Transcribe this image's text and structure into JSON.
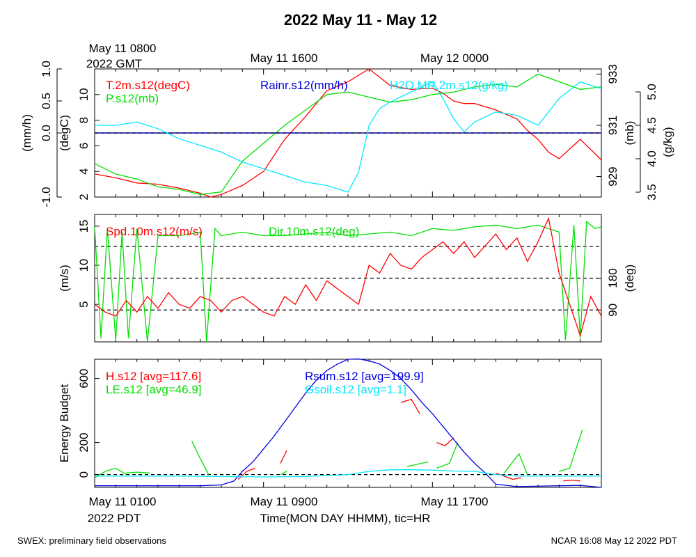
{
  "title": "2022 May 11 - May 12",
  "top_time_labels": [
    "May 11 0800",
    "May 11 1600",
    "May 12 0000"
  ],
  "top_time_sublabel": "2022 GMT",
  "bottom_time_labels": [
    "May 11 0100",
    "May 11 0900",
    "May 11 1700"
  ],
  "bottom_time_sublabel": "2022 PDT",
  "xlabel": "Time(MON DAY HHMM), tic=HR",
  "footer_left": "SWEX: preliminary field observations",
  "footer_right": "NCAR 16:08 May 12 2022 PDT",
  "colors": {
    "red": "#ff0000",
    "green": "#00e000",
    "blue": "#0000e0",
    "cyan": "#00e8ff",
    "black": "#000000"
  },
  "chart_data": [
    {
      "type": "line",
      "panel": "top",
      "x_unit": "hours since May 11 0100 PDT",
      "xlim": [
        0,
        24
      ],
      "axes": {
        "left_outer": {
          "label": "(mm/h)",
          "ticks": [
            "-1.0",
            "0.0",
            "0.5",
            "1.0"
          ],
          "tick_values": [
            -1.0,
            0.0,
            0.5,
            1.0
          ],
          "range": [
            -1.0,
            1.0
          ]
        },
        "left_inner": {
          "label": "(degC)",
          "ticks": [
            "2",
            "4",
            "6",
            "8",
            "10"
          ],
          "tick_values": [
            2,
            4,
            6,
            8,
            10
          ],
          "range": [
            2,
            12
          ]
        },
        "right_inner": {
          "label": "(mb)",
          "ticks": [
            "929",
            "931",
            "933"
          ],
          "tick_values": [
            929,
            931,
            933
          ],
          "range": [
            928.2,
            933.2
          ]
        },
        "right_outer": {
          "label": "(g/kg)",
          "ticks": [
            "3.5",
            "4.0",
            "4.5",
            "5.0"
          ],
          "tick_values": [
            3.5,
            4.0,
            4.5,
            5.0
          ],
          "range": [
            3.5,
            5.0
          ]
        }
      },
      "series": [
        {
          "name": "T.2m.s12(degC)",
          "color": "red",
          "axis": "left_inner",
          "x": [
            0,
            1,
            2,
            3,
            4,
            5,
            5.5,
            6,
            7,
            8,
            9,
            10,
            11,
            12,
            13,
            14,
            15,
            16,
            16.5,
            17,
            17.5,
            18,
            19,
            20,
            20.5,
            21,
            21.5,
            22,
            23,
            24
          ],
          "y": [
            3.8,
            3.5,
            3.1,
            3.0,
            2.7,
            2.3,
            2.0,
            2.2,
            2.9,
            4.0,
            6.5,
            8.3,
            10.3,
            11.0,
            12.0,
            10.7,
            10.4,
            10.5,
            10.1,
            9.5,
            9.3,
            9.3,
            8.8,
            8.1,
            7.2,
            6.5,
            5.5,
            5.0,
            6.5,
            4.9
          ]
        },
        {
          "name": "P.s12(mb)",
          "color": "green",
          "axis": "right_inner",
          "x": [
            0,
            1,
            2,
            3,
            4,
            5,
            6,
            7,
            8,
            9,
            10,
            11,
            12,
            13,
            14,
            15,
            16,
            17,
            18,
            19,
            20,
            21,
            22,
            23,
            24
          ],
          "y": [
            929.5,
            929.1,
            928.9,
            928.6,
            928.5,
            928.3,
            928.4,
            929.6,
            930.3,
            931.0,
            931.6,
            932.2,
            932.3,
            932.1,
            931.9,
            932.0,
            932.2,
            932.3,
            932.5,
            932.6,
            932.5,
            933.0,
            932.7,
            932.4,
            932.5
          ]
        },
        {
          "name": "Rainr.s12(mm/h)",
          "color": "blue",
          "axis": "left_outer",
          "x": [
            0,
            24
          ],
          "y": [
            0.0,
            0.0
          ]
        },
        {
          "name": "H2O.MR.2m.s12(g/kg)",
          "color": "cyan",
          "axis": "right_outer",
          "x": [
            0,
            1,
            2,
            3,
            4,
            5,
            6,
            7,
            8,
            9,
            10,
            11,
            12,
            12.5,
            13,
            13.5,
            14,
            15,
            16,
            16.5,
            17,
            17.5,
            18,
            19,
            20,
            21,
            22,
            23,
            24
          ],
          "y": [
            4.5,
            4.5,
            4.55,
            4.45,
            4.3,
            4.2,
            4.1,
            3.95,
            3.85,
            3.75,
            3.65,
            3.6,
            3.5,
            3.8,
            4.5,
            4.75,
            4.85,
            5.0,
            5.15,
            4.9,
            4.6,
            4.4,
            4.55,
            4.7,
            4.65,
            4.5,
            4.9,
            5.15,
            5.05
          ]
        }
      ]
    },
    {
      "type": "line",
      "panel": "middle",
      "x_unit": "hours since May 11 0100 PDT",
      "xlim": [
        0,
        24
      ],
      "axes": {
        "left": {
          "label": "(m/s)",
          "ticks": [
            "5",
            "10",
            "15"
          ],
          "tick_values": [
            5,
            10,
            15
          ],
          "range": [
            0.2,
            16.5
          ]
        },
        "right": {
          "label": "(deg)",
          "ticks": [
            "90",
            "180"
          ],
          "tick_values": [
            90,
            180
          ],
          "range": [
            0,
            360
          ]
        }
      },
      "reference_lines": [
        {
          "axis": "right",
          "values": [
            90,
            180,
            270
          ],
          "style": "dashed"
        }
      ],
      "series": [
        {
          "name": "Spd.10m.s12(m/s)",
          "color": "red",
          "axis": "left",
          "x": [
            0,
            0.5,
            1,
            1.5,
            2,
            2.5,
            3,
            3.5,
            4,
            4.5,
            5,
            5.5,
            6,
            6.5,
            7,
            7.5,
            8,
            8.5,
            9,
            9.5,
            10,
            10.5,
            11,
            11.5,
            12,
            12.5,
            13,
            13.5,
            14,
            14.5,
            15,
            15.5,
            16,
            16.5,
            17,
            17.5,
            18,
            18.5,
            19,
            19.5,
            20,
            20.5,
            21,
            21.5,
            22,
            22.5,
            23,
            23.5,
            24
          ],
          "y": [
            5,
            4,
            3.5,
            5.5,
            4,
            6,
            4.5,
            6.5,
            5,
            4.5,
            6,
            5.5,
            4,
            5.5,
            6,
            5,
            4,
            3.5,
            6,
            5,
            7.5,
            5.5,
            8,
            7,
            6,
            5,
            10,
            9,
            11.5,
            10,
            9.5,
            11,
            12,
            13,
            11.5,
            13,
            11,
            12.5,
            14,
            12,
            13.5,
            10.5,
            13,
            16,
            9,
            5,
            1,
            6,
            3.5
          ]
        },
        {
          "name": "Dir.10m.s12(deg)",
          "color": "green",
          "axis": "right",
          "x": [
            0,
            0.3,
            0.6,
            1,
            1.3,
            1.6,
            2,
            2.5,
            3,
            4,
            5,
            5.3,
            5.7,
            6,
            7,
            8,
            9,
            10,
            11,
            12,
            13,
            14,
            15,
            16,
            17,
            18,
            19,
            20,
            21,
            21.5,
            22,
            22.3,
            22.7,
            23,
            23.3,
            23.7,
            24
          ],
          "y": [
            325,
            10,
            320,
            5,
            310,
            10,
            320,
            0,
            300,
            300,
            310,
            0,
            320,
            300,
            310,
            300,
            300,
            305,
            310,
            300,
            305,
            310,
            300,
            320,
            315,
            325,
            330,
            320,
            330,
            320,
            310,
            5,
            330,
            10,
            340,
            320,
            325
          ]
        }
      ]
    },
    {
      "type": "line",
      "panel": "bottom",
      "x_unit": "hours since May 11 0100 PDT",
      "xlim": [
        0,
        24
      ],
      "axes": {
        "left": {
          "label": "Energy Budget",
          "ticks": [
            "0",
            "200",
            "600"
          ],
          "tick_values": [
            0,
            200,
            600
          ],
          "range": [
            -80,
            720
          ]
        }
      },
      "reference_lines": [
        {
          "axis": "left",
          "values": [
            0
          ],
          "style": "dashed"
        }
      ],
      "series": [
        {
          "name": "H.s12",
          "legend": "H.s12 [avg=117.6]",
          "color": "red",
          "axis": "left",
          "segments": [
            {
              "x": [
                6.8,
                7.2,
                7.6
              ],
              "y": [
                -30,
                20,
                40
              ]
            },
            {
              "x": [
                8.8,
                9.1
              ],
              "y": [
                70,
                150
              ]
            },
            {
              "x": [
                14.5,
                15.0,
                15.4
              ],
              "y": [
                450,
                470,
                380
              ]
            },
            {
              "x": [
                16.2,
                16.6,
                17.0
              ],
              "y": [
                200,
                180,
                230
              ]
            },
            {
              "x": [
                19.0,
                19.4,
                19.8,
                20.2
              ],
              "y": [
                10,
                -10,
                -30,
                -20
              ]
            },
            {
              "x": [
                22.2,
                22.6,
                23.0
              ],
              "y": [
                -40,
                -35,
                -40
              ]
            }
          ]
        },
        {
          "name": "LE.s12",
          "legend": "LE.s12 [avg=46.9]",
          "color": "green",
          "axis": "left",
          "segments": [
            {
              "x": [
                0,
                0.5,
                1.0,
                1.5
              ],
              "y": [
                -20,
                20,
                40,
                0
              ]
            },
            {
              "x": [
                1.5,
                2.0,
                2.6
              ],
              "y": [
                10,
                15,
                10
              ]
            },
            {
              "x": [
                4.6,
                5.0,
                5.4
              ],
              "y": [
                210,
                100,
                0
              ]
            },
            {
              "x": [
                8.8,
                9.1
              ],
              "y": [
                0,
                20
              ]
            },
            {
              "x": [
                14.8,
                15.8
              ],
              "y": [
                50,
                80
              ]
            },
            {
              "x": [
                16.2,
                16.8,
                17.2
              ],
              "y": [
                40,
                70,
                200
              ]
            },
            {
              "x": [
                19.4,
                20.1,
                20.5
              ],
              "y": [
                10,
                130,
                0
              ]
            },
            {
              "x": [
                22.0,
                22.5,
                23.1
              ],
              "y": [
                20,
                40,
                280
              ]
            }
          ]
        },
        {
          "name": "Rsum.s12",
          "legend": "Rsum.s12 [avg=199.9]",
          "color": "blue",
          "axis": "left",
          "segments": [
            {
              "x": [
                0,
                2,
                4,
                5,
                6,
                6.6,
                7,
                7.5,
                8,
                8.5,
                9,
                9.5,
                10,
                10.5,
                11,
                11.5,
                12,
                12.5,
                13,
                13.5,
                14,
                14.5,
                15,
                15.5,
                16,
                16.5,
                17,
                17.5,
                18,
                18.5,
                19,
                20,
                22,
                23,
                24
              ],
              "y": [
                -70,
                -70,
                -70,
                -70,
                -65,
                -40,
                20,
                80,
                160,
                240,
                330,
                420,
                510,
                590,
                650,
                690,
                720,
                722,
                710,
                690,
                650,
                600,
                530,
                450,
                380,
                300,
                220,
                140,
                70,
                10,
                -60,
                -75,
                -70,
                -68,
                -80
              ]
            }
          ]
        },
        {
          "name": "Gsoil.s12",
          "legend": "Gsoil.s12 [avg=1.1]",
          "color": "cyan",
          "axis": "left",
          "segments": [
            {
              "x": [
                0,
                4,
                8,
                10,
                12,
                13,
                14,
                15,
                16,
                17,
                18,
                19,
                20,
                22,
                24
              ],
              "y": [
                -10,
                -10,
                -15,
                -12,
                0,
                20,
                30,
                30,
                28,
                22,
                20,
                0,
                -10,
                -10,
                -10
              ]
            }
          ]
        }
      ]
    }
  ]
}
